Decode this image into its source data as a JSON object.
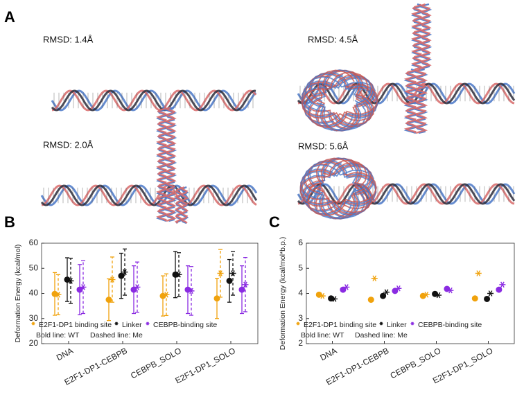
{
  "figure_labels": [
    "A",
    "B",
    "C"
  ],
  "structures": [
    {
      "label": "RMSD: 1.4Å"
    },
    {
      "label": "RMSD: 2.0Å"
    },
    {
      "label": "RMSD: 4.5Å"
    },
    {
      "label": "RMSD: 5.6Å"
    }
  ],
  "chart_data": [
    {
      "type": "errorbar",
      "ylabel": "Deformation Energy (kcal/mol)",
      "categories": [
        "DNA",
        "E2F1-DP1-CEBPB",
        "CEBPB_SOLO",
        "E2F1-DP1_SOLO"
      ],
      "ylim": [
        20,
        60
      ],
      "yticks": [
        20,
        30,
        40,
        50,
        60
      ],
      "series": [
        {
          "name": "E2F1-DP1 binding site",
          "color": "#f0a20c",
          "wt": {
            "values": [
              39.8,
              37.5,
              39,
              38
            ],
            "errors": [
              8.5,
              8.3,
              8,
              8
            ]
          },
          "me": {
            "values": [
              39.5,
              45.5,
              39.5,
              48
            ],
            "errors": [
              8,
              9,
              8.3,
              9.5
            ]
          }
        },
        {
          "name": "Linker",
          "color": "#111111",
          "wt": {
            "values": [
              45.5,
              47,
              47.5,
              45
            ],
            "errors": [
              8.7,
              9,
              9.2,
              8.5
            ]
          },
          "me": {
            "values": [
              45,
              48.5,
              47.5,
              48
            ],
            "errors": [
              9,
              9.2,
              8.7,
              8.7
            ]
          }
        },
        {
          "name": "CEBPB-binding site",
          "color": "#8a2be2",
          "wt": {
            "values": [
              41.5,
              41.5,
              41.5,
              41.5
            ],
            "errors": [
              10,
              9.5,
              9.5,
              9.5
            ]
          },
          "me": {
            "values": [
              42.5,
              42.5,
              41,
              43.5
            ],
            "errors": [
              10.5,
              10,
              9.7,
              10.8
            ]
          }
        }
      ],
      "legend_notes": [
        "Bold line: WT",
        "Dashed line:  Me"
      ]
    },
    {
      "type": "scatter",
      "ylabel": "Deformation Energy (kcal/mol*b.p.)",
      "categories": [
        "DNA",
        "E2F1-DP1-CEBPB",
        "CEBPB_SOLO",
        "E2F1-DP1_SOLO"
      ],
      "ylim": [
        2,
        6
      ],
      "yticks": [
        2,
        3,
        4,
        5,
        6
      ],
      "series": [
        {
          "name": "E2F1-DP1 binding site",
          "color": "#f0a20c",
          "wt": {
            "values": [
              3.95,
              3.75,
              3.9,
              3.8
            ]
          },
          "me": {
            "values": [
              3.9,
              4.6,
              3.95,
              4.8
            ]
          }
        },
        {
          "name": "Linker",
          "color": "#111111",
          "wt": {
            "values": [
              3.8,
              3.9,
              3.98,
              3.78
            ]
          },
          "me": {
            "values": [
              3.78,
              4.05,
              3.93,
              4.0
            ]
          }
        },
        {
          "name": "CEBPB-binding site",
          "color": "#8a2be2",
          "wt": {
            "values": [
              4.15,
              4.1,
              4.18,
              4.15
            ]
          },
          "me": {
            "values": [
              4.25,
              4.2,
              4.12,
              4.35
            ]
          }
        }
      ],
      "legend_notes": [
        "Bold line: WT",
        "Dashed line:  Me"
      ]
    }
  ]
}
